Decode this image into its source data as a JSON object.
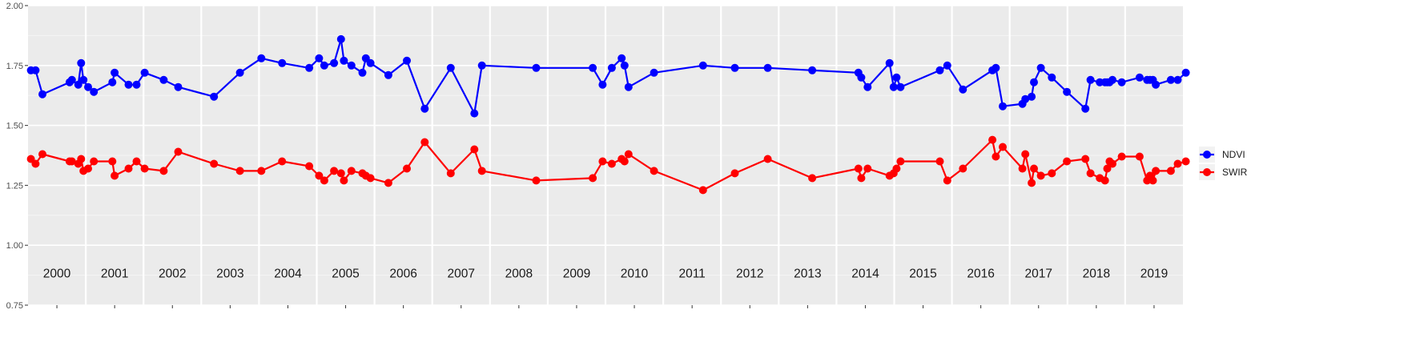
{
  "chart_data": {
    "type": "line",
    "title": "",
    "xlabel": "",
    "ylabel": "",
    "ylim": [
      0.75,
      2.0
    ],
    "xlim": [
      2000.0,
      2020.0
    ],
    "yticks": [
      "0.75",
      "1.00",
      "1.25",
      "1.50",
      "1.75",
      "2.00"
    ],
    "year_labels": [
      "2000",
      "2001",
      "2002",
      "2003",
      "2004",
      "2005",
      "2006",
      "2007",
      "2008",
      "2009",
      "2010",
      "2011",
      "2012",
      "2013",
      "2014",
      "2015",
      "2016",
      "2017",
      "2018",
      "2019"
    ],
    "grid": true,
    "legend_position": "right",
    "series": [
      {
        "name": "NDVI",
        "color": "#0000ff",
        "x": [
          2000.05,
          2000.13,
          2000.25,
          2000.72,
          2000.76,
          2000.87,
          2000.92,
          2000.96,
          2001.04,
          2001.14,
          2001.46,
          2001.5,
          2001.74,
          2001.88,
          2002.02,
          2002.35,
          2002.6,
          2003.22,
          2003.67,
          2004.04,
          2004.4,
          2004.87,
          2005.04,
          2005.13,
          2005.3,
          2005.42,
          2005.47,
          2005.6,
          2005.79,
          2005.85,
          2005.93,
          2006.24,
          2006.56,
          2006.87,
          2007.32,
          2007.73,
          2007.86,
          2008.8,
          2009.78,
          2009.95,
          2010.11,
          2010.28,
          2010.33,
          2010.4,
          2010.84,
          2011.69,
          2012.24,
          2012.81,
          2013.58,
          2014.38,
          2014.43,
          2014.54,
          2014.92,
          2014.99,
          2015.04,
          2015.11,
          2015.79,
          2015.92,
          2016.19,
          2016.7,
          2016.76,
          2016.88,
          2017.22,
          2017.27,
          2017.38,
          2017.42,
          2017.54,
          2017.73,
          2017.99,
          2018.31,
          2018.4,
          2018.56,
          2018.65,
          2018.69,
          2018.73,
          2018.78,
          2018.94,
          2019.25,
          2019.38,
          2019.43,
          2019.48,
          2019.53,
          2019.79,
          2019.91,
          2020.05
        ],
        "y": [
          1.73,
          1.73,
          1.63,
          1.68,
          1.69,
          1.67,
          1.76,
          1.69,
          1.66,
          1.64,
          1.68,
          1.72,
          1.67,
          1.67,
          1.72,
          1.69,
          1.66,
          1.62,
          1.72,
          1.78,
          1.76,
          1.74,
          1.78,
          1.75,
          1.76,
          1.86,
          1.77,
          1.75,
          1.72,
          1.78,
          1.76,
          1.71,
          1.77,
          1.57,
          1.74,
          1.55,
          1.75,
          1.74,
          1.74,
          1.67,
          1.74,
          1.78,
          1.75,
          1.66,
          1.72,
          1.75,
          1.74,
          1.74,
          1.73,
          1.72,
          1.7,
          1.66,
          1.76,
          1.66,
          1.7,
          1.66,
          1.73,
          1.75,
          1.65,
          1.73,
          1.74,
          1.58,
          1.59,
          1.61,
          1.62,
          1.68,
          1.74,
          1.7,
          1.64,
          1.57,
          1.69,
          1.68,
          1.68,
          1.68,
          1.68,
          1.69,
          1.68,
          1.7,
          1.69,
          1.69,
          1.69,
          1.67,
          1.69,
          1.69,
          1.72
        ]
      },
      {
        "name": "SWIR",
        "color": "#ff0000",
        "x": [
          2000.05,
          2000.13,
          2000.25,
          2000.72,
          2000.76,
          2000.87,
          2000.92,
          2000.96,
          2001.04,
          2001.14,
          2001.46,
          2001.5,
          2001.74,
          2001.88,
          2002.02,
          2002.35,
          2002.6,
          2003.22,
          2003.67,
          2004.04,
          2004.4,
          2004.87,
          2005.04,
          2005.13,
          2005.3,
          2005.42,
          2005.47,
          2005.6,
          2005.79,
          2005.85,
          2005.93,
          2006.24,
          2006.56,
          2006.87,
          2007.32,
          2007.73,
          2007.86,
          2008.8,
          2009.78,
          2009.95,
          2010.11,
          2010.28,
          2010.33,
          2010.4,
          2010.84,
          2011.69,
          2012.24,
          2012.81,
          2013.58,
          2014.38,
          2014.43,
          2014.54,
          2014.92,
          2014.99,
          2015.04,
          2015.11,
          2015.79,
          2015.92,
          2016.19,
          2016.7,
          2016.76,
          2016.88,
          2017.22,
          2017.27,
          2017.38,
          2017.42,
          2017.54,
          2017.73,
          2017.99,
          2018.31,
          2018.4,
          2018.56,
          2018.65,
          2018.69,
          2018.73,
          2018.78,
          2018.94,
          2019.25,
          2019.38,
          2019.43,
          2019.48,
          2019.53,
          2019.79,
          2019.91,
          2020.05
        ],
        "y": [
          1.36,
          1.34,
          1.38,
          1.35,
          1.35,
          1.34,
          1.36,
          1.31,
          1.32,
          1.35,
          1.35,
          1.29,
          1.32,
          1.35,
          1.32,
          1.31,
          1.39,
          1.34,
          1.31,
          1.31,
          1.35,
          1.33,
          1.29,
          1.27,
          1.31,
          1.3,
          1.27,
          1.31,
          1.3,
          1.29,
          1.28,
          1.26,
          1.32,
          1.43,
          1.3,
          1.4,
          1.31,
          1.27,
          1.28,
          1.35,
          1.34,
          1.36,
          1.35,
          1.38,
          1.31,
          1.23,
          1.3,
          1.36,
          1.28,
          1.32,
          1.28,
          1.32,
          1.29,
          1.3,
          1.32,
          1.35,
          1.35,
          1.27,
          1.32,
          1.44,
          1.37,
          1.41,
          1.32,
          1.38,
          1.26,
          1.32,
          1.29,
          1.3,
          1.35,
          1.36,
          1.3,
          1.28,
          1.27,
          1.32,
          1.35,
          1.34,
          1.37,
          1.37,
          1.27,
          1.29,
          1.27,
          1.31,
          1.31,
          1.34,
          1.35
        ]
      }
    ]
  }
}
